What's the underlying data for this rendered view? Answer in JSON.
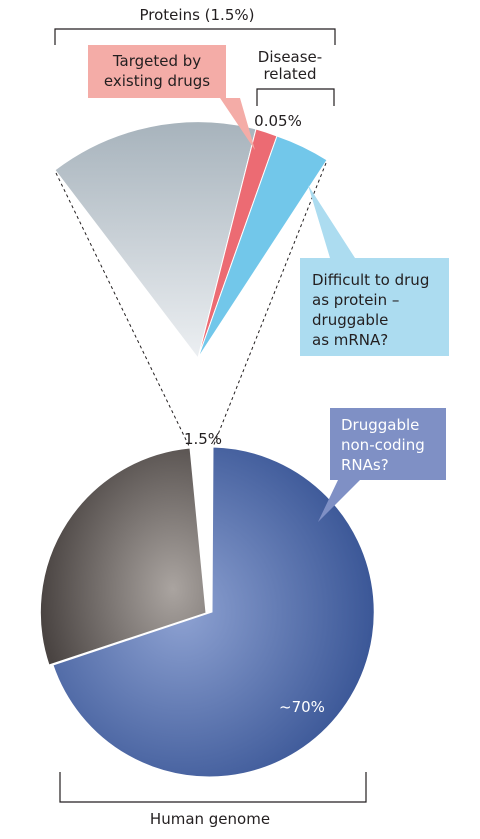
{
  "proteins_label": "Proteins (1.5%)",
  "disease_label": [
    "Disease-",
    "related"
  ],
  "disease_share": "0.05%",
  "targeted_label": [
    "Targeted by",
    "existing drugs"
  ],
  "difficult_label": [
    "Difficult to drug",
    "as protein –",
    "druggable",
    "as mRNA?"
  ],
  "noncoding_label": [
    "Druggable",
    "non-coding",
    "RNAs?"
  ],
  "protein_share": "1.5%",
  "noncoding_share": "~70%",
  "genome_label": "Human genome"
}
